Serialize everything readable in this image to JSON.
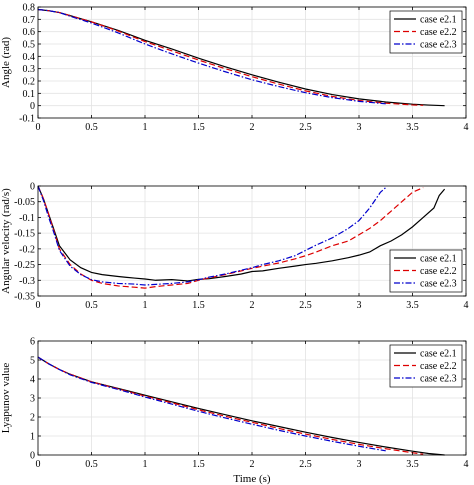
{
  "chart_data": [
    {
      "type": "line",
      "title": "",
      "xlabel": "",
      "ylabel": "Angle (rad)",
      "xlim": [
        0,
        4
      ],
      "ylim": [
        -0.1,
        0.8
      ],
      "xticks": [
        0,
        0.5,
        1,
        1.5,
        2,
        2.5,
        3,
        3.5,
        4
      ],
      "xtick_labels": [
        "0",
        "0.5",
        "1",
        "1.5",
        "2",
        "2.5",
        "3",
        "3.5",
        "4"
      ],
      "yticks": [
        -0.1,
        0,
        0.1,
        0.2,
        0.3,
        0.4,
        0.5,
        0.6,
        0.7,
        0.8
      ],
      "ytick_labels": [
        "-0.1",
        "0",
        "0.1",
        "0.2",
        "0.3",
        "0.4",
        "0.5",
        "0.6",
        "0.7",
        "0.8"
      ],
      "grid": true,
      "legend": "top-right",
      "series": [
        {
          "name": "case e2.1",
          "color": "#000000",
          "dash": "solid",
          "x": [
            0,
            0.1,
            0.2,
            0.3,
            0.5,
            0.75,
            1.0,
            1.25,
            1.5,
            1.75,
            2.0,
            2.25,
            2.5,
            2.75,
            3.0,
            3.25,
            3.5,
            3.65,
            3.8
          ],
          "y": [
            0.78,
            0.77,
            0.755,
            0.73,
            0.68,
            0.61,
            0.53,
            0.46,
            0.385,
            0.315,
            0.25,
            0.19,
            0.135,
            0.09,
            0.055,
            0.03,
            0.012,
            0.005,
            0.0
          ]
        },
        {
          "name": "case e2.2",
          "color": "#dd0000",
          "dash": "dashed",
          "x": [
            0,
            0.1,
            0.2,
            0.3,
            0.5,
            0.75,
            1.0,
            1.25,
            1.5,
            1.75,
            2.0,
            2.25,
            2.5,
            2.75,
            3.0,
            3.25,
            3.5,
            3.6
          ],
          "y": [
            0.78,
            0.77,
            0.755,
            0.73,
            0.68,
            0.605,
            0.52,
            0.445,
            0.37,
            0.3,
            0.235,
            0.175,
            0.12,
            0.075,
            0.042,
            0.02,
            0.006,
            0.003
          ]
        },
        {
          "name": "case e2.3",
          "color": "#0000cc",
          "dash": "dashdot",
          "x": [
            0,
            0.1,
            0.2,
            0.3,
            0.5,
            0.75,
            1.0,
            1.25,
            1.5,
            1.75,
            2.0,
            2.25,
            2.5,
            2.75,
            3.0,
            3.25
          ],
          "y": [
            0.78,
            0.77,
            0.755,
            0.725,
            0.67,
            0.59,
            0.5,
            0.42,
            0.345,
            0.275,
            0.21,
            0.155,
            0.105,
            0.065,
            0.035,
            0.015
          ]
        }
      ]
    },
    {
      "type": "line",
      "title": "",
      "xlabel": "",
      "ylabel": "Angular velocity (rad/s)",
      "xlim": [
        0,
        4
      ],
      "ylim": [
        -0.35,
        0
      ],
      "xticks": [
        0,
        0.5,
        1,
        1.5,
        2,
        2.5,
        3,
        3.5,
        4
      ],
      "xtick_labels": [
        "0",
        "0.5",
        "1",
        "1.5",
        "2",
        "2.5",
        "3",
        "3.5",
        "4"
      ],
      "yticks": [
        -0.35,
        -0.3,
        -0.25,
        -0.2,
        -0.15,
        -0.1,
        -0.05,
        0
      ],
      "ytick_labels": [
        "-0.35",
        "-0.3",
        "-0.25",
        "-0.2",
        "-0.15",
        "-0.1",
        "-0.05",
        "0"
      ],
      "grid": true,
      "legend": "bottom-right",
      "series": [
        {
          "name": "case e2.1",
          "color": "#000000",
          "dash": "solid",
          "x": [
            0,
            0.05,
            0.1,
            0.15,
            0.2,
            0.3,
            0.4,
            0.5,
            0.6,
            0.75,
            0.9,
            1.0,
            1.1,
            1.25,
            1.4,
            1.5,
            1.6,
            1.75,
            1.9,
            2.0,
            2.1,
            2.25,
            2.4,
            2.5,
            2.6,
            2.75,
            2.9,
            3.0,
            3.1,
            3.2,
            3.3,
            3.4,
            3.5,
            3.6,
            3.7,
            3.75,
            3.8
          ],
          "y": [
            0,
            -0.04,
            -0.09,
            -0.14,
            -0.19,
            -0.235,
            -0.26,
            -0.275,
            -0.282,
            -0.288,
            -0.293,
            -0.296,
            -0.3,
            -0.298,
            -0.302,
            -0.297,
            -0.295,
            -0.288,
            -0.28,
            -0.272,
            -0.27,
            -0.262,
            -0.255,
            -0.25,
            -0.246,
            -0.238,
            -0.228,
            -0.22,
            -0.21,
            -0.19,
            -0.175,
            -0.155,
            -0.13,
            -0.1,
            -0.07,
            -0.03,
            -0.01
          ]
        },
        {
          "name": "case e2.2",
          "color": "#dd0000",
          "dash": "dashed",
          "x": [
            0,
            0.05,
            0.1,
            0.15,
            0.2,
            0.3,
            0.4,
            0.5,
            0.6,
            0.75,
            0.9,
            1.0,
            1.1,
            1.25,
            1.4,
            1.5,
            1.6,
            1.75,
            1.9,
            2.0,
            2.1,
            2.25,
            2.4,
            2.5,
            2.6,
            2.75,
            2.9,
            3.0,
            3.1,
            3.2,
            3.3,
            3.4,
            3.5,
            3.6
          ],
          "y": [
            0,
            -0.04,
            -0.09,
            -0.145,
            -0.2,
            -0.25,
            -0.28,
            -0.3,
            -0.31,
            -0.318,
            -0.322,
            -0.325,
            -0.32,
            -0.315,
            -0.31,
            -0.3,
            -0.292,
            -0.282,
            -0.27,
            -0.262,
            -0.255,
            -0.245,
            -0.232,
            -0.222,
            -0.21,
            -0.19,
            -0.175,
            -0.155,
            -0.135,
            -0.11,
            -0.08,
            -0.05,
            -0.02,
            -0.005
          ]
        },
        {
          "name": "case e2.3",
          "color": "#0000cc",
          "dash": "dashdot",
          "x": [
            0,
            0.05,
            0.1,
            0.15,
            0.2,
            0.3,
            0.4,
            0.5,
            0.6,
            0.75,
            0.9,
            1.0,
            1.1,
            1.25,
            1.4,
            1.5,
            1.6,
            1.75,
            1.9,
            2.0,
            2.1,
            2.25,
            2.4,
            2.5,
            2.6,
            2.75,
            2.9,
            3.0,
            3.05,
            3.1,
            3.15,
            3.2,
            3.25
          ],
          "y": [
            0,
            -0.045,
            -0.1,
            -0.15,
            -0.205,
            -0.255,
            -0.282,
            -0.298,
            -0.305,
            -0.31,
            -0.312,
            -0.315,
            -0.313,
            -0.31,
            -0.305,
            -0.298,
            -0.29,
            -0.28,
            -0.268,
            -0.26,
            -0.25,
            -0.238,
            -0.222,
            -0.205,
            -0.188,
            -0.165,
            -0.135,
            -0.11,
            -0.09,
            -0.07,
            -0.045,
            -0.02,
            -0.005
          ]
        }
      ]
    },
    {
      "type": "line",
      "title": "",
      "xlabel": "Time (s)",
      "ylabel": "Lyapunov value",
      "xlim": [
        0,
        4
      ],
      "ylim": [
        0,
        6
      ],
      "xticks": [
        0,
        0.5,
        1,
        1.5,
        2,
        2.5,
        3,
        3.5,
        4
      ],
      "xtick_labels": [
        "0",
        "0.5",
        "1",
        "1.5",
        "2",
        "2.5",
        "3",
        "3.5",
        "4"
      ],
      "yticks": [
        0,
        1,
        2,
        3,
        4,
        5,
        6
      ],
      "ytick_labels": [
        "0",
        "1",
        "2",
        "3",
        "4",
        "5",
        "6"
      ],
      "grid": true,
      "legend": "top-right",
      "series": [
        {
          "name": "case e2.1",
          "color": "#000000",
          "dash": "solid",
          "x": [
            0,
            0.1,
            0.2,
            0.3,
            0.5,
            0.75,
            1.0,
            1.25,
            1.5,
            1.75,
            2.0,
            2.25,
            2.5,
            2.75,
            3.0,
            3.25,
            3.5,
            3.65,
            3.8
          ],
          "y": [
            5.15,
            4.8,
            4.5,
            4.25,
            3.85,
            3.5,
            3.15,
            2.8,
            2.45,
            2.12,
            1.8,
            1.5,
            1.2,
            0.92,
            0.66,
            0.42,
            0.2,
            0.08,
            0.0
          ]
        },
        {
          "name": "case e2.2",
          "color": "#dd0000",
          "dash": "dashed",
          "x": [
            0,
            0.1,
            0.2,
            0.3,
            0.5,
            0.75,
            1.0,
            1.25,
            1.5,
            1.75,
            2.0,
            2.25,
            2.5,
            2.75,
            3.0,
            3.25,
            3.5,
            3.6
          ],
          "y": [
            5.15,
            4.8,
            4.5,
            4.25,
            3.85,
            3.48,
            3.1,
            2.75,
            2.38,
            2.04,
            1.72,
            1.4,
            1.1,
            0.82,
            0.56,
            0.33,
            0.12,
            0.04
          ]
        },
        {
          "name": "case e2.3",
          "color": "#0000cc",
          "dash": "dashdot",
          "x": [
            0,
            0.1,
            0.2,
            0.3,
            0.5,
            0.75,
            1.0,
            1.25,
            1.5,
            1.75,
            2.0,
            2.25,
            2.5,
            2.75,
            3.0,
            3.25
          ],
          "y": [
            5.15,
            4.8,
            4.5,
            4.22,
            3.82,
            3.45,
            3.05,
            2.68,
            2.3,
            1.95,
            1.62,
            1.3,
            1.0,
            0.72,
            0.46,
            0.22
          ]
        }
      ]
    }
  ]
}
